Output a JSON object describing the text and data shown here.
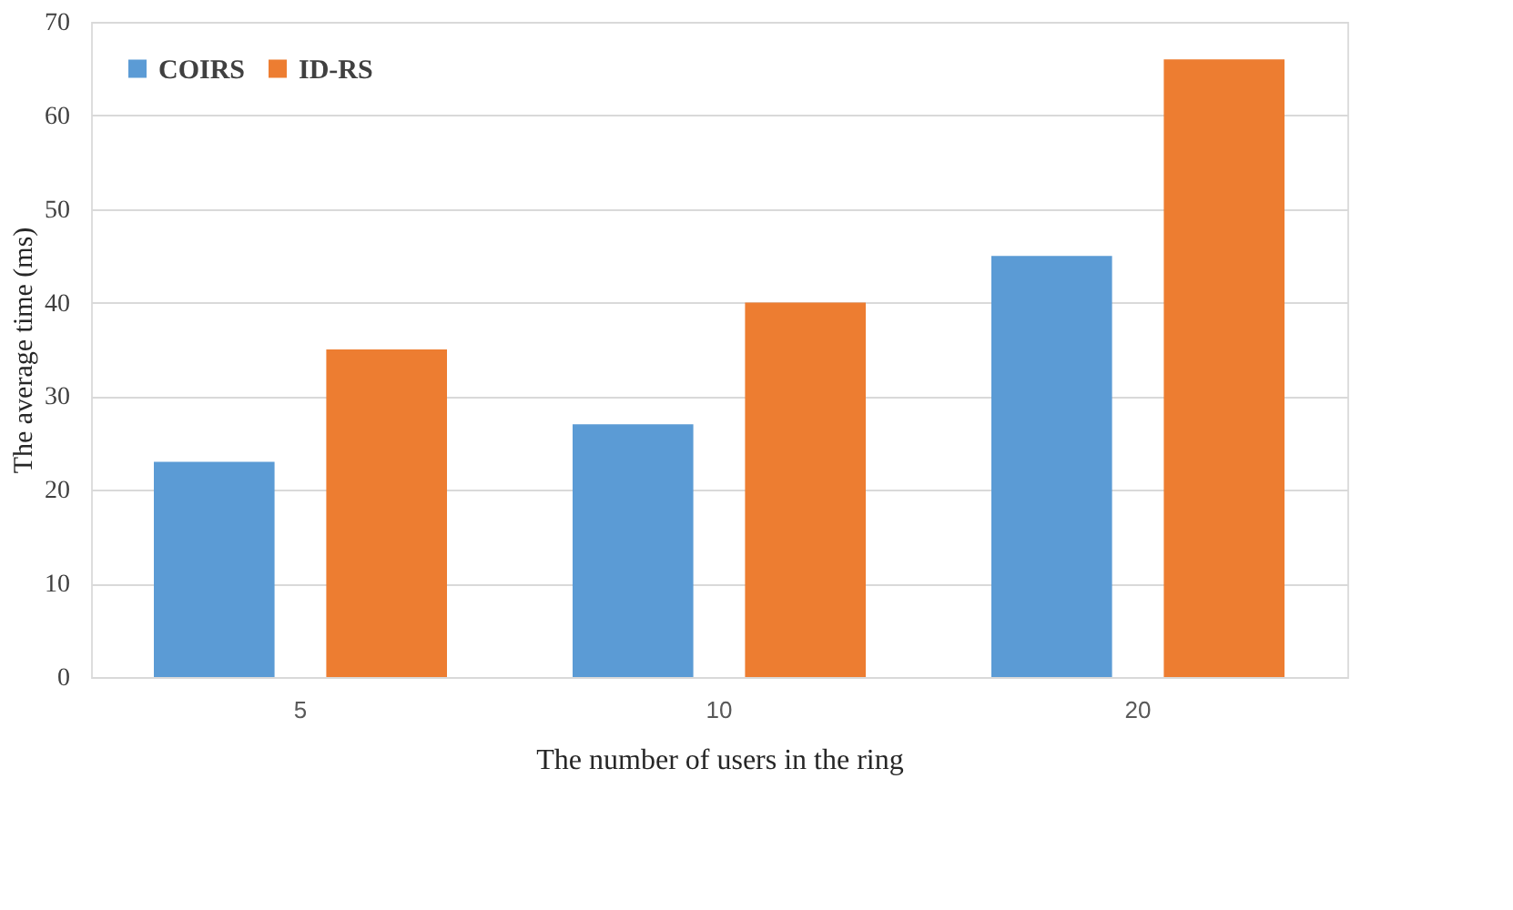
{
  "chart_data": {
    "type": "bar",
    "xlabel": "The number of users in the ring",
    "ylabel": "The average time (ms)",
    "categories": [
      "5",
      "10",
      "20"
    ],
    "series": [
      {
        "name": "COIRS",
        "color": "#5b9bd5",
        "values": [
          23,
          27,
          45
        ]
      },
      {
        "name": "ID-RS",
        "color": "#ed7d31",
        "values": [
          35,
          40,
          66
        ]
      }
    ],
    "ylim": [
      0,
      70
    ],
    "yticks": [
      0,
      10,
      20,
      30,
      40,
      50,
      60,
      70
    ],
    "grid": "y",
    "legend": "top left"
  }
}
